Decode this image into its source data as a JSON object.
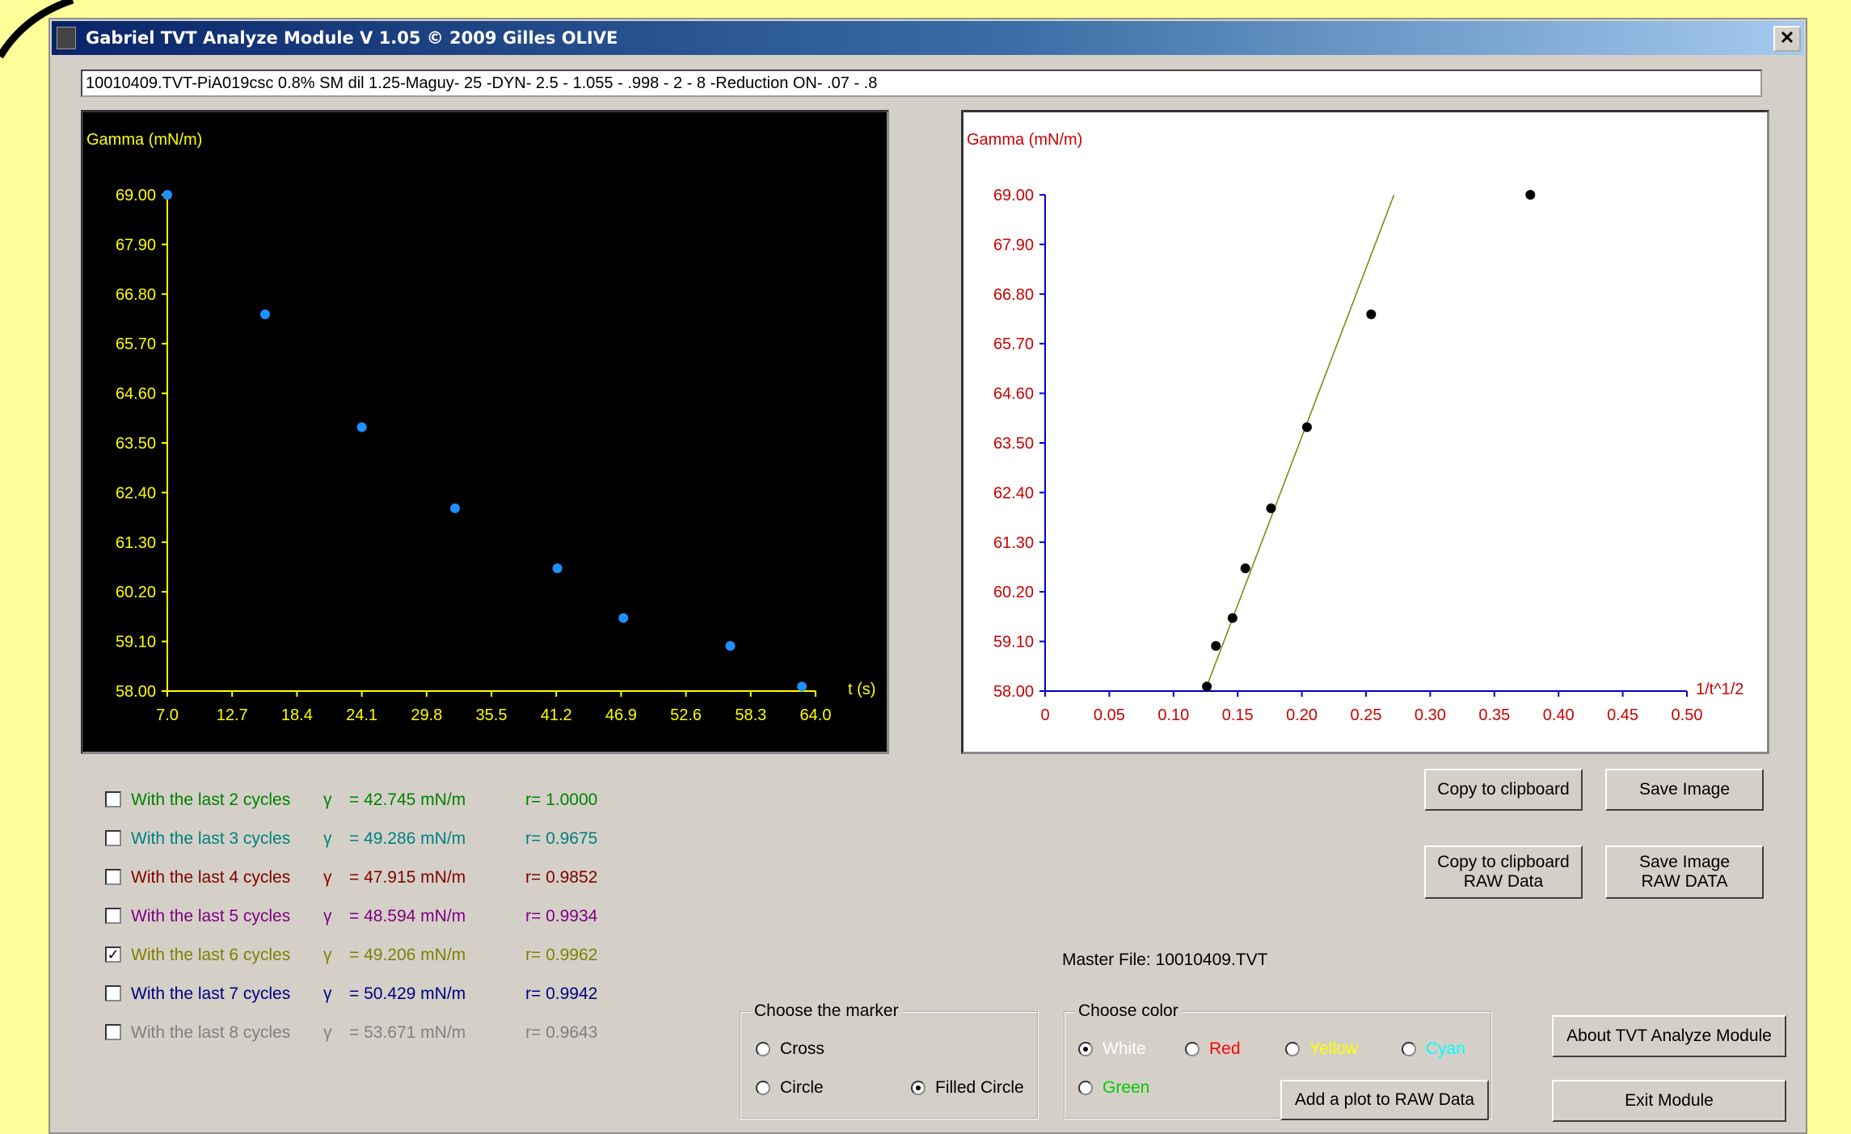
{
  "window": {
    "title": "Gabriel TVT Analyze Module V 1.05 © 2009 Gilles OLIVE"
  },
  "file_path": "10010409.TVT-PiA019csc 0.8% SM dil 1.25-Maguy- 25 -DYN- 2.5 - 1.055 - .998 - 2 - 8 -Reduction ON- .07 - .8",
  "chart_data": [
    {
      "type": "scatter",
      "ylabel": "Gamma (mN/m)",
      "xlabel": "t (s)",
      "xlim": [
        7.0,
        64.0
      ],
      "ylim": [
        58.0,
        69.0
      ],
      "x_ticks": [
        "7.0",
        "12.7",
        "18.4",
        "24.1",
        "29.8",
        "35.5",
        "41.2",
        "46.9",
        "52.6",
        "58.3",
        "64.0"
      ],
      "y_ticks": [
        "69.00",
        "67.90",
        "66.80",
        "65.70",
        "64.60",
        "63.50",
        "62.40",
        "61.30",
        "60.20",
        "59.10",
        "58.00"
      ],
      "x": [
        7.0,
        15.6,
        24.1,
        32.3,
        41.3,
        47.1,
        56.5,
        62.8
      ],
      "y": [
        69.0,
        66.35,
        63.85,
        62.05,
        60.72,
        59.62,
        59.0,
        58.1
      ],
      "background": "#000000",
      "axis_color": "#FFFF00",
      "marker_color": "#1E90FF"
    },
    {
      "type": "scatter",
      "ylabel": "Gamma (mN/m)",
      "xlabel": "1/t^1/2",
      "xlim": [
        0,
        0.5
      ],
      "ylim": [
        58.0,
        69.0
      ],
      "x_ticks": [
        "0",
        "0.05",
        "0.10",
        "0.15",
        "0.20",
        "0.25",
        "0.30",
        "0.35",
        "0.40",
        "0.45",
        "0.50"
      ],
      "y_ticks": [
        "69.00",
        "67.90",
        "66.80",
        "65.70",
        "64.60",
        "63.50",
        "62.40",
        "61.30",
        "60.20",
        "59.10",
        "58.00"
      ],
      "x": [
        0.378,
        0.254,
        0.204,
        0.176,
        0.156,
        0.146,
        0.133,
        0.126
      ],
      "y": [
        69.0,
        66.35,
        63.85,
        62.05,
        60.72,
        59.62,
        59.0,
        58.1
      ],
      "fit_line": {
        "x": [
          0.1245,
          0.2718
        ],
        "y": [
          58.0,
          69.0
        ]
      },
      "background": "#FFFFFF",
      "axis_color": "#0000CC",
      "tick_label_color": "#CC0000",
      "marker_color": "#000000",
      "fit_color": "#808000"
    }
  ],
  "cycles": [
    {
      "label": "With the last 2 cycles",
      "sym": "γ",
      "eq": "=  42.745 mN/m",
      "r": "r=  1.0000",
      "checked": false,
      "color": "#008000"
    },
    {
      "label": "With the last 3 cycles",
      "sym": "γ",
      "eq": "=  49.286 mN/m",
      "r": "r= 0.9675",
      "checked": false,
      "color": "#008080"
    },
    {
      "label": "With the last 4 cycles",
      "sym": "γ",
      "eq": "=  47.915 mN/m",
      "r": "r= 0.9852",
      "checked": false,
      "color": "#800000"
    },
    {
      "label": "With the last 5 cycles",
      "sym": "γ",
      "eq": "=  48.594 mN/m",
      "r": "r= 0.9934",
      "checked": false,
      "color": "#800080"
    },
    {
      "label": "With the last 6 cycles",
      "sym": "γ",
      "eq": "=  49.206 mN/m",
      "r": "r= 0.9962",
      "checked": true,
      "color": "#808000"
    },
    {
      "label": "With the last 7 cycles",
      "sym": "γ",
      "eq": "=  50.429 mN/m",
      "r": "r= 0.9942",
      "checked": false,
      "color": "#000080"
    },
    {
      "label": "With the last 8 cycles",
      "sym": "γ",
      "eq": "=  53.671 mN/m",
      "r": "r= 0.9643",
      "checked": false,
      "color": "#808080"
    }
  ],
  "buttons": {
    "copy_clipboard": "Copy to clipboard",
    "save_image": "Save Image",
    "copy_raw_1": "Copy to clipboard",
    "copy_raw_2": "RAW Data",
    "save_raw_1": "Save Image",
    "save_raw_2": "RAW DATA",
    "about": "About TVT Analyze Module",
    "exit": "Exit Module",
    "add_plot": "Add a plot to RAW Data"
  },
  "master_file": "Master File: 10010409.TVT",
  "marker_group": {
    "title": "Choose the marker",
    "cross": "Cross",
    "circle": "Circle",
    "filled_circle": "Filled Circle",
    "selected": "filled_circle"
  },
  "color_group": {
    "title": "Choose color",
    "white": "White",
    "red": "Red",
    "yellow": "Yellow",
    "cyan": "Cyan",
    "green": "Green",
    "selected": "white",
    "colors": {
      "white": "#FFFFFF",
      "red": "#FF0000",
      "yellow": "#FFFF00",
      "cyan": "#00FFFF",
      "green": "#00CC00"
    }
  }
}
